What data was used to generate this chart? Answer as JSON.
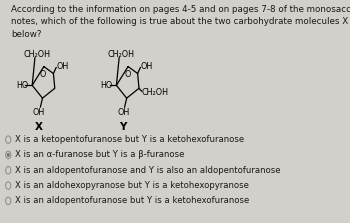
{
  "title_text": "According to the information on pages 4-5 and on pages 7-8 of the monosaccharide\nnotes, which of the following is true about the two carbohydrate molecules X and Y\nbelow?",
  "options": [
    "X is a ketopentofuranose but Y is a ketohexofuranose",
    "X is an α-furanose but Y is a β-furanose",
    "X is an aldopentofuranose and Y is also an aldopentofuranose",
    "X is an aldohexopyranose but Y is a ketohexopyranose",
    "X is an aldopentofuranose but Y is a ketohexofuranose"
  ],
  "selected_option": 1,
  "bg_color": "#d3d0cb",
  "text_color": "#1a1a1a",
  "title_fontsize": 6.3,
  "option_fontsize": 6.1,
  "mol_label_fontsize": 7.5,
  "mol_fontsize": 5.8
}
